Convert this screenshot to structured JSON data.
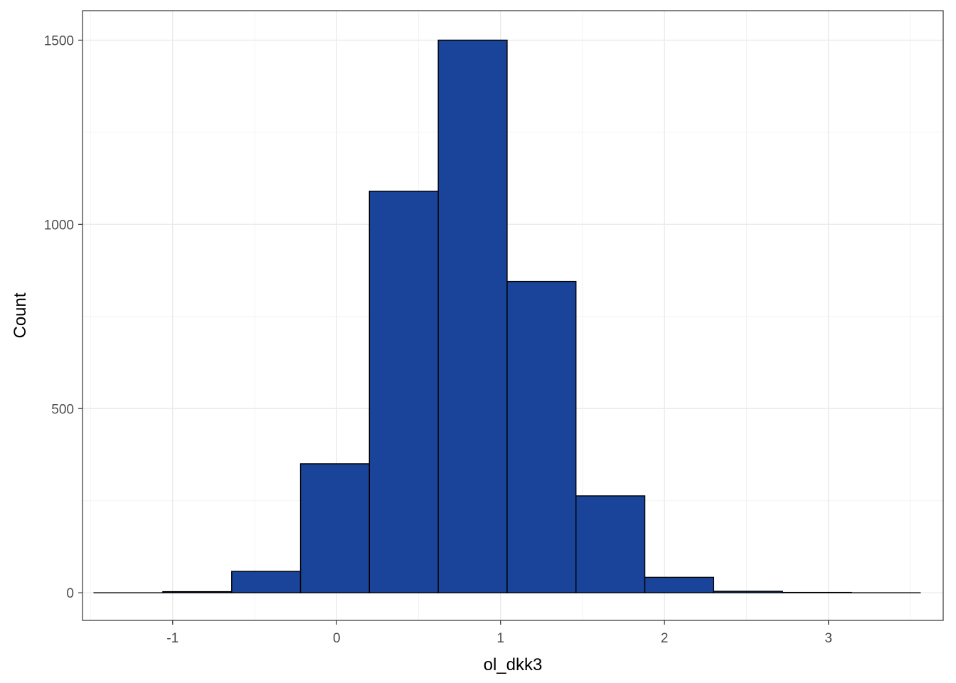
{
  "chart_data": {
    "type": "bar",
    "subtype": "histogram",
    "title": "",
    "xlabel": "ol_dkk3",
    "ylabel": "Count",
    "xlim": [
      -1.55,
      3.7
    ],
    "ylim": [
      -75,
      1580
    ],
    "x_ticks": [
      -1,
      0,
      1,
      2,
      3
    ],
    "y_ticks": [
      0,
      500,
      1000,
      1500
    ],
    "grid": true,
    "legend": "none",
    "bin_width": 0.42,
    "bins": [
      {
        "start": -1.48,
        "end": -1.06,
        "count": 0
      },
      {
        "start": -1.06,
        "end": -0.64,
        "count": 3
      },
      {
        "start": -0.64,
        "end": -0.22,
        "count": 58
      },
      {
        "start": -0.22,
        "end": 0.2,
        "count": 350
      },
      {
        "start": 0.2,
        "end": 0.62,
        "count": 1090
      },
      {
        "start": 0.62,
        "end": 1.04,
        "count": 1500
      },
      {
        "start": 1.04,
        "end": 1.46,
        "count": 845
      },
      {
        "start": 1.46,
        "end": 1.88,
        "count": 263
      },
      {
        "start": 1.88,
        "end": 2.3,
        "count": 42
      },
      {
        "start": 2.3,
        "end": 2.72,
        "count": 4
      },
      {
        "start": 2.72,
        "end": 3.14,
        "count": 1
      },
      {
        "start": 3.14,
        "end": 3.56,
        "count": 0
      }
    ],
    "colors": {
      "bar_fill": "#1a4499",
      "bar_outline": "#000000",
      "grid_major": "#ebebeb",
      "grid_minor": "#f4f4f4",
      "panel_border": "#333333"
    }
  }
}
